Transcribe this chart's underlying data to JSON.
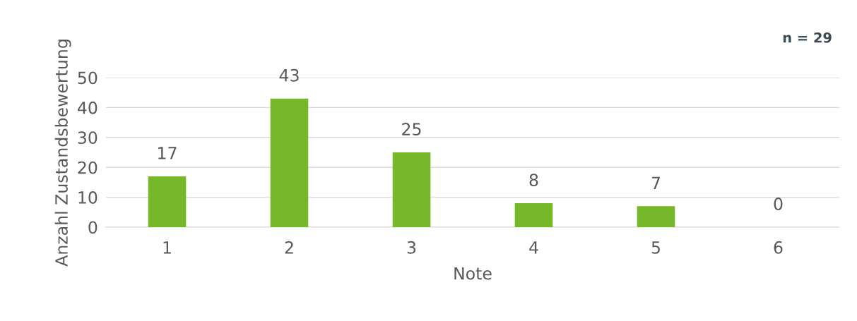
{
  "chart_data": {
    "type": "bar",
    "xlabel": "Note",
    "ylabel": "Anzahl Zustandsbewertung",
    "categories": [
      "1",
      "2",
      "3",
      "4",
      "5",
      "6"
    ],
    "values": [
      17,
      43,
      25,
      8,
      7,
      0
    ],
    "color": "#76b82a",
    "ylim": [
      0,
      50
    ],
    "yticks": [
      0,
      10,
      20,
      30,
      40,
      50
    ],
    "grid": "y",
    "data_labels": true,
    "annotations": [
      "n = 29"
    ]
  }
}
